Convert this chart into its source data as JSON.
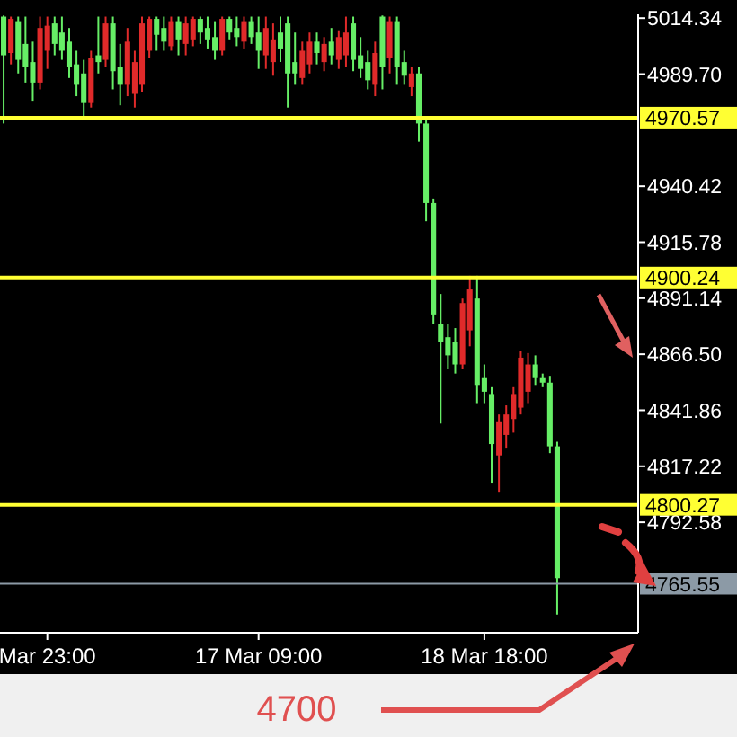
{
  "chart_data": {
    "type": "candlestick",
    "categories": [
      null,
      null,
      null,
      null,
      null,
      null,
      "Mar 23:00",
      null,
      null,
      null,
      null,
      null,
      null,
      null,
      null,
      null,
      null,
      null,
      null,
      null,
      null,
      null,
      null,
      null,
      null,
      null,
      null,
      null,
      null,
      null,
      null,
      null,
      null,
      null,
      null,
      "17 Mar 09:00",
      null,
      null,
      null,
      null,
      null,
      null,
      null,
      null,
      null,
      null,
      null,
      null,
      null,
      null,
      null,
      null,
      null,
      null,
      null,
      null,
      null,
      null,
      null,
      null,
      null,
      null,
      null,
      null,
      null,
      null,
      "18 Mar 18:00",
      null,
      null,
      null,
      null,
      null,
      null,
      null,
      null,
      null,
      null
    ],
    "ohlc": [
      [
        5015,
        5015.5,
        4968,
        4998
      ],
      [
        4999,
        5015,
        4994,
        5014
      ],
      [
        5013,
        5015,
        4990,
        4996
      ],
      [
        5003,
        5015,
        4986,
        4993
      ],
      [
        4995,
        5004,
        4978,
        4986
      ],
      [
        4986,
        5015,
        4983,
        5010
      ],
      [
        5000,
        5015,
        4992,
        5011
      ],
      [
        5012,
        5015,
        4998,
        5003
      ],
      [
        5008,
        5015,
        4996,
        5000
      ],
      [
        5004,
        5010,
        4988,
        4993
      ],
      [
        4994,
        5000,
        4980,
        4985
      ],
      [
        4990,
        4996,
        4970,
        4977
      ],
      [
        4977,
        5000,
        4975,
        4997
      ],
      [
        4998,
        5015,
        4990,
        4995
      ],
      [
        4996,
        5015,
        4993,
        5012
      ],
      [
        5012,
        5015,
        4983,
        4991
      ],
      [
        4993,
        5003,
        4976,
        4985
      ],
      [
        4985,
        5010,
        4980,
        5004
      ],
      [
        4981,
        5000,
        4975,
        4995
      ],
      [
        4985,
        5015,
        4982,
        5012
      ],
      [
        5000,
        5015,
        4997,
        5014
      ],
      [
        5014,
        5015,
        5000,
        5007
      ],
      [
        5010,
        5015,
        5000,
        5004
      ],
      [
        5002,
        5015,
        5000,
        5013
      ],
      [
        5013,
        5015,
        4998,
        5005
      ],
      [
        5003,
        5015,
        4998,
        5012
      ],
      [
        5005,
        5015,
        5002,
        5014
      ],
      [
        5014,
        5015,
        5003,
        5008
      ],
      [
        5010,
        5015,
        5001,
        5005
      ],
      [
        5006,
        5013,
        4996,
        5000
      ],
      [
        5000,
        5015,
        4998,
        5014
      ],
      [
        5014,
        5015,
        5005,
        5008
      ],
      [
        5010,
        5015,
        5002,
        5006
      ],
      [
        5004,
        5015,
        5001,
        5013
      ],
      [
        5013,
        5015,
        5003,
        5006
      ],
      [
        5008,
        5015,
        4992,
        5000
      ],
      [
        4998,
        5015,
        4992,
        5010
      ],
      [
        4995,
        5012,
        4989,
        5005
      ],
      [
        5008,
        5015,
        4995,
        5001
      ],
      [
        5012,
        5015,
        4975,
        4990
      ],
      [
        4995,
        5008,
        4985,
        4990
      ],
      [
        4988,
        5004,
        4985,
        5000
      ],
      [
        4994,
        5008,
        4990,
        5004
      ],
      [
        5004,
        5008,
        4994,
        4999
      ],
      [
        4995,
        5006,
        4991,
        5003
      ],
      [
        5004,
        5010,
        4994,
        4998
      ],
      [
        4996,
        5009,
        4992,
        5006
      ],
      [
        4998,
        5015,
        4993,
        5008
      ],
      [
        5012,
        5015,
        4991,
        4996
      ],
      [
        4998,
        5006,
        4988,
        4992
      ],
      [
        4995,
        5000,
        4983,
        4987
      ],
      [
        4985,
        5004,
        4980,
        4999
      ],
      [
        5015,
        5015.5,
        4983,
        4993
      ],
      [
        4997,
        5015,
        4990,
        5013
      ],
      [
        5013,
        5015,
        4985,
        4993
      ],
      [
        4995,
        5000,
        4985,
        4989
      ],
      [
        4984,
        4993,
        4980,
        4990
      ],
      [
        4990,
        4993,
        4960,
        4968
      ],
      [
        4968,
        4970,
        4925,
        4933
      ],
      [
        4933,
        4935,
        4880,
        4884
      ],
      [
        4880,
        4893,
        4836,
        4872
      ],
      [
        4874,
        4880,
        4860,
        4866
      ],
      [
        4872,
        4878,
        4858,
        4862
      ],
      [
        4862,
        4891,
        4860,
        4889
      ],
      [
        4877,
        4901,
        4870,
        4895
      ],
      [
        4891,
        4901,
        4845,
        4853
      ],
      [
        4856,
        4862,
        4845,
        4850
      ],
      [
        4849,
        4852,
        4810,
        4827
      ],
      [
        4822,
        4840,
        4806,
        4837
      ],
      [
        4831,
        4844,
        4825,
        4840
      ],
      [
        4838,
        4852,
        4832,
        4849
      ],
      [
        4843,
        4868,
        4840,
        4865
      ],
      [
        4850,
        4867,
        4845,
        4862
      ],
      [
        4862,
        4866,
        4853,
        4856
      ],
      [
        4856,
        4858,
        4852,
        4854
      ],
      [
        4854,
        4857,
        4823,
        4826
      ],
      [
        4826,
        4828,
        4752,
        4768
      ]
    ],
    "colors": [
      "#66ee66",
      "#e02a2a",
      "#66ee66",
      "#66ee66",
      "#66ee66",
      "#e02a2a",
      "#e02a2a",
      "#66ee66",
      "#66ee66",
      "#66ee66",
      "#66ee66",
      "#66ee66",
      "#e02a2a",
      "#66ee66",
      "#e02a2a",
      "#66ee66",
      "#66ee66",
      "#e02a2a",
      "#e02a2a",
      "#e02a2a",
      "#e02a2a",
      "#66ee66",
      "#66ee66",
      "#e02a2a",
      "#66ee66",
      "#e02a2a",
      "#e02a2a",
      "#66ee66",
      "#66ee66",
      "#66ee66",
      "#e02a2a",
      "#66ee66",
      "#66ee66",
      "#e02a2a",
      "#66ee66",
      "#66ee66",
      "#e02a2a",
      "#e02a2a",
      "#66ee66",
      "#66ee66",
      "#66ee66",
      "#e02a2a",
      "#e02a2a",
      "#66ee66",
      "#e02a2a",
      "#66ee66",
      "#e02a2a",
      "#e02a2a",
      "#66ee66",
      "#66ee66",
      "#66ee66",
      "#e02a2a",
      "#66ee66",
      "#e02a2a",
      "#66ee66",
      "#66ee66",
      "#e02a2a",
      "#66ee66",
      "#66ee66",
      "#66ee66",
      "#66ee66",
      "#66ee66",
      "#66ee66",
      "#e02a2a",
      "#e02a2a",
      "#66ee66",
      "#66ee66",
      "#66ee66",
      "#e02a2a",
      "#e02a2a",
      "#e02a2a",
      "#e02a2a",
      "#e02a2a",
      "#66ee66",
      "#66ee66",
      "#66ee66",
      "#66ee66"
    ],
    "ylim": [
      4744,
      5016
    ],
    "yticks": [
      {
        "value": 5014.34,
        "label": "5014.34"
      },
      {
        "value": 4989.7,
        "label": "4989.70"
      },
      {
        "value": 4940.42,
        "label": "4940.42"
      },
      {
        "value": 4915.78,
        "label": "4915.78"
      },
      {
        "value": 4891.14,
        "label": "4891.14"
      },
      {
        "value": 4866.5,
        "label": "4866.50"
      },
      {
        "value": 4841.86,
        "label": "4841.86"
      },
      {
        "value": 4817.22,
        "label": "4817.22"
      },
      {
        "value": 4792.58,
        "label": "4792.58"
      }
    ],
    "ref_lines": [
      {
        "axis": "y",
        "value": 4970.57,
        "label": "4970.57",
        "color": "#ffff33"
      },
      {
        "axis": "y",
        "value": 4900.24,
        "label": "4900.24",
        "color": "#ffff33"
      },
      {
        "axis": "y",
        "value": 4800.27,
        "label": "4800.27",
        "color": "#ffff33"
      },
      {
        "axis": "y",
        "value": 4765.55,
        "label": "4765.55",
        "color": "#8c9aa6"
      }
    ],
    "annotations": [
      "4700"
    ]
  }
}
